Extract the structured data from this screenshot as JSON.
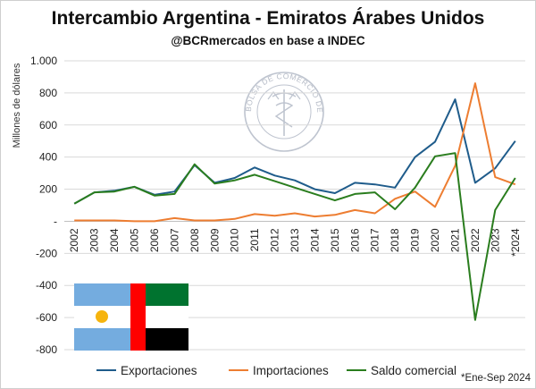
{
  "chart_data": {
    "type": "line",
    "title": "Intercambio Argentina - Emiratos Árabes Unidos",
    "subtitle": "@BCRmercados en base a INDEC",
    "ylabel": "Millones de dólares",
    "xlabel": "",
    "footnote": "*Ene-Sep 2024",
    "ylim": [
      -800,
      1000
    ],
    "y_ticks": [
      1000,
      800,
      600,
      400,
      200,
      0,
      -200,
      -400,
      -600,
      -800
    ],
    "y_tick_labels": [
      "1.000",
      "800",
      "600",
      "400",
      "200",
      "-",
      "-200",
      "-400",
      "-600",
      "-800"
    ],
    "grid": "horizontal",
    "legend_position": "bottom",
    "categories": [
      "2002",
      "2003",
      "2004",
      "2005",
      "2006",
      "2007",
      "2008",
      "2009",
      "2010",
      "2011",
      "2012",
      "2013",
      "2014",
      "2015",
      "2016",
      "2017",
      "2018",
      "2019",
      "2020",
      "2021",
      "2022",
      "2023",
      "*2024"
    ],
    "series": [
      {
        "name": "Exportaciones",
        "color": "#1f5c8b",
        "values": [
          110,
          180,
          190,
          215,
          165,
          185,
          350,
          240,
          270,
          335,
          285,
          255,
          200,
          175,
          240,
          230,
          210,
          400,
          495,
          760,
          240,
          330,
          500
        ]
      },
      {
        "name": "Importaciones",
        "color": "#ed7d31",
        "values": [
          5,
          5,
          5,
          0,
          0,
          20,
          5,
          5,
          15,
          45,
          35,
          50,
          30,
          40,
          70,
          50,
          140,
          185,
          90,
          345,
          860,
          275,
          230
        ]
      },
      {
        "name": "Saldo comercial",
        "color": "#2a7d1e",
        "values": [
          110,
          180,
          185,
          215,
          160,
          170,
          355,
          235,
          255,
          290,
          250,
          210,
          170,
          130,
          170,
          180,
          75,
          210,
          405,
          425,
          -615,
          70,
          270
        ]
      }
    ],
    "watermark_text": "BOLSA DE COMERCIO DE ROSARIO",
    "flag_colors": {
      "argentina_blue": "#74acdf",
      "argentina_white": "#ffffff",
      "argentina_sun": "#f6b40e",
      "uae_red": "#ff0000",
      "uae_green": "#00732f",
      "uae_white": "#ffffff",
      "uae_black": "#000000"
    }
  }
}
